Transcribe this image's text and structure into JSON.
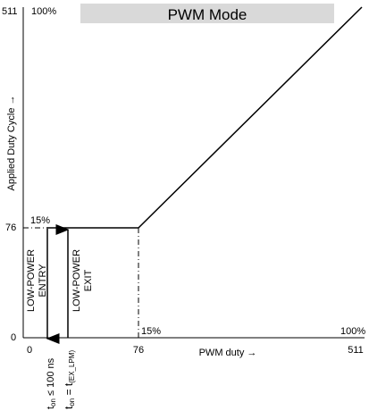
{
  "chart_data": {
    "type": "line",
    "banner": "PWM Mode",
    "xlabel": "PWM duty →",
    "ylabel": "Applied Duty Cycle →",
    "xlim": [
      0,
      511
    ],
    "ylim": [
      0,
      511
    ],
    "x_ticks": [
      "0",
      "76",
      "511"
    ],
    "y_ticks": [
      "0",
      "76",
      "511"
    ],
    "series": [
      {
        "x": [
          0,
          76,
          511
        ],
        "y": [
          76,
          76,
          511
        ]
      }
    ],
    "percent_labels": {
      "y_top": "100%",
      "y_mid": "15%",
      "x_mid": "15%",
      "x_right": "100%"
    },
    "annotations": {
      "entry_line1": "LOW-POWER",
      "entry_line2": "ENTRY",
      "exit_line1": "LOW-POWER",
      "exit_line2": "EXIT",
      "entry_cond_base": "t",
      "entry_cond_sub": "on",
      "entry_cond_rest": " ≤ 100 ns",
      "exit_cond_base": "t",
      "exit_cond_sub": "on",
      "exit_cond_eq": " = t",
      "exit_cond_sub2": "(EX_LPM)"
    },
    "colors": {
      "banner_fill": "#d9d9d9",
      "line": "#000000"
    }
  }
}
